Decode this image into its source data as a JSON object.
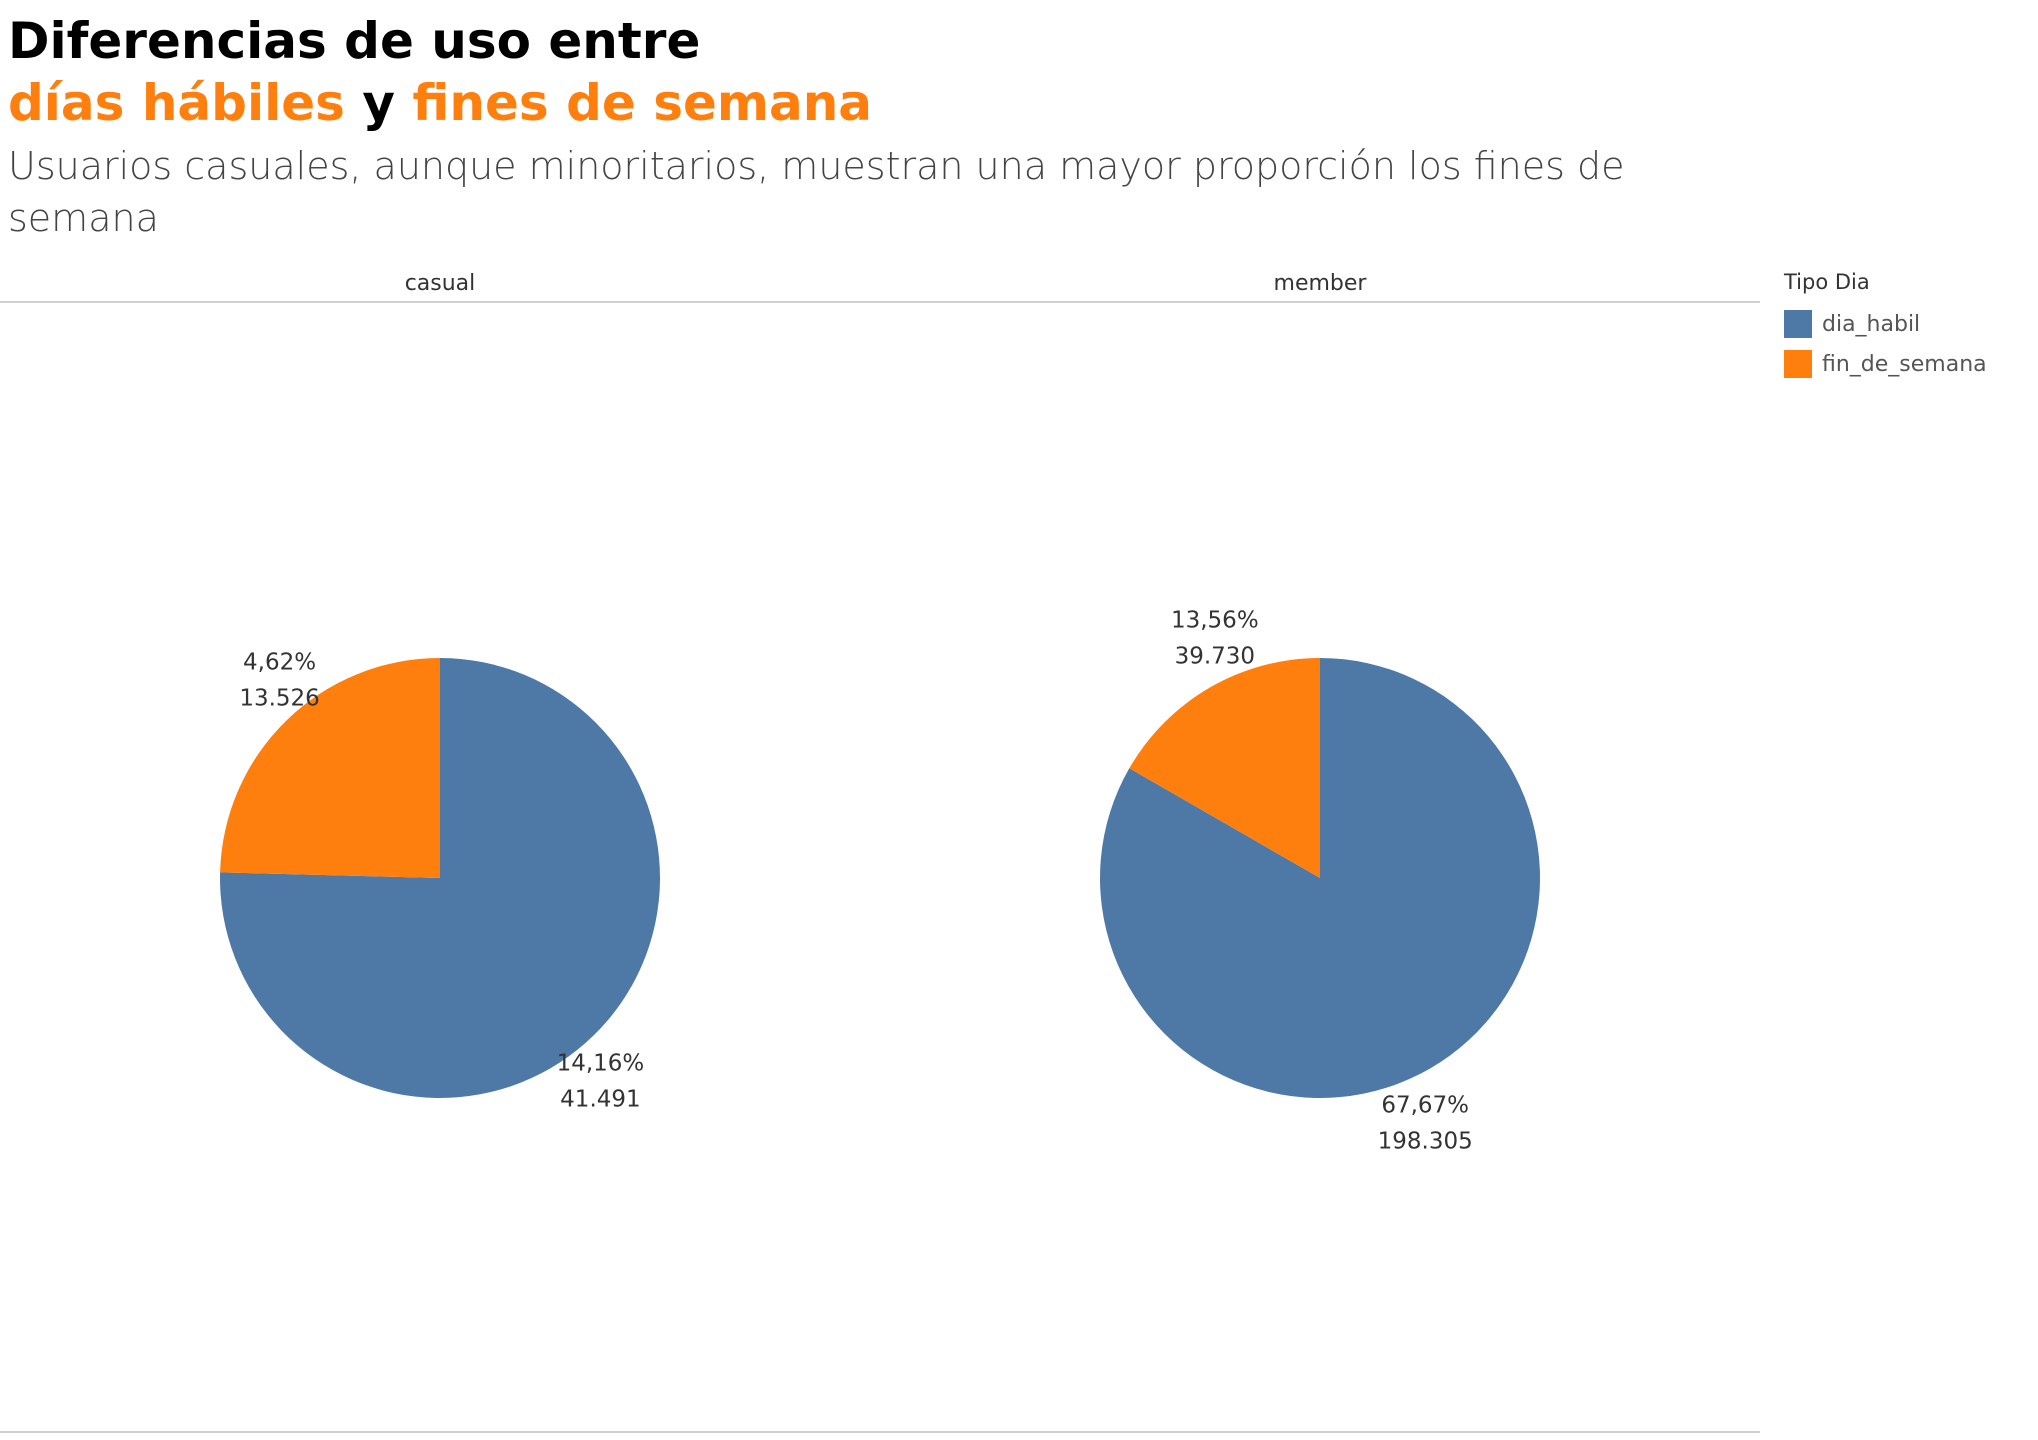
{
  "title": {
    "line1": "Diferencias de uso entre",
    "line2_part1": "días hábiles",
    "line2_part2": " y ",
    "line2_part3": "fines de semana",
    "accent_color": "#FF7F0E",
    "dark_color": "#000000"
  },
  "subtitle": "Usuarios casuales, aunque minoritarios, muestran una mayor proporción los fines de semana",
  "legend": {
    "title": "Tipo Dia",
    "items": [
      {
        "label": "dia_habil",
        "color": "#4E79A7"
      },
      {
        "label": "fin_de_semana",
        "color": "#FF7F0E"
      }
    ]
  },
  "chart_data": [
    {
      "type": "pie",
      "panel": "casual",
      "slices": [
        {
          "category": "dia_habil",
          "percent": "14,16%",
          "value": "41.491",
          "share": 0.7541,
          "color": "#4E79A7"
        },
        {
          "category": "fin_de_semana",
          "percent": "4,62%",
          "value": "13.526",
          "share": 0.2459,
          "color": "#FF7F0E"
        }
      ]
    },
    {
      "type": "pie",
      "panel": "member",
      "slices": [
        {
          "category": "dia_habil",
          "percent": "67,67%",
          "value": "198.305",
          "share": 0.8331,
          "color": "#4E79A7"
        },
        {
          "category": "fin_de_semana",
          "percent": "13,56%",
          "value": "39.730",
          "share": 0.1669,
          "color": "#FF7F0E"
        }
      ]
    }
  ]
}
